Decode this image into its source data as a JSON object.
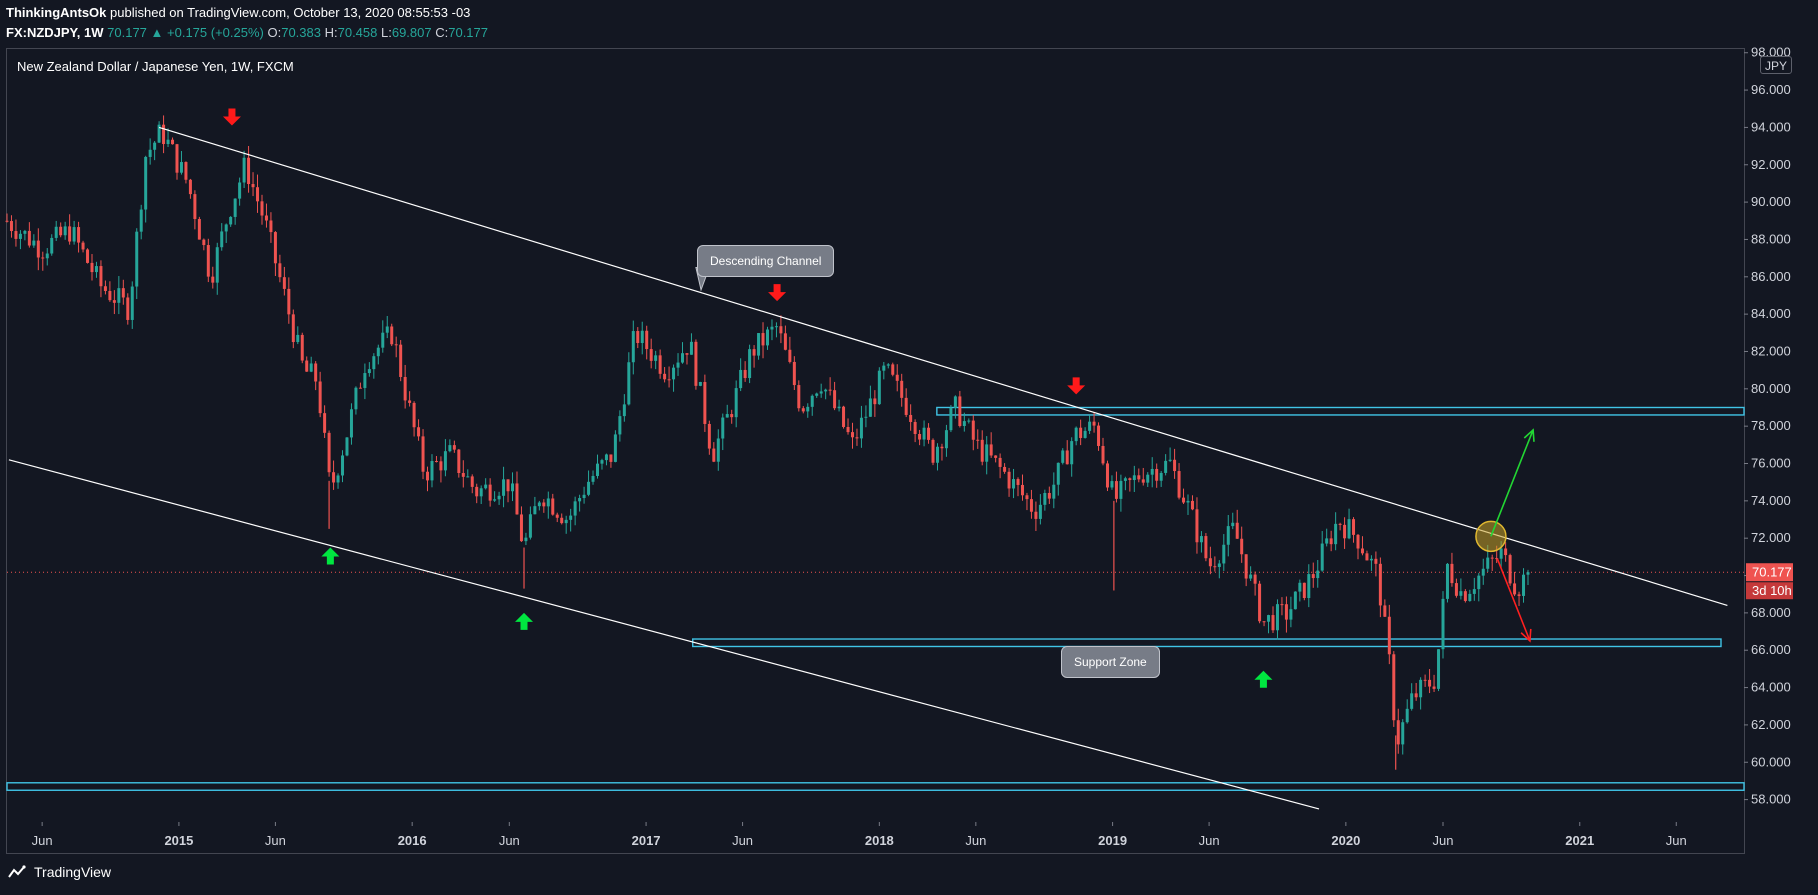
{
  "header": {
    "author": "ThinkingAntsOk",
    "published": "published on TradingView.com, October 13, 2020 08:55:53 -03",
    "symbol": "FX:NZDJPY, 1W",
    "last": "70.177",
    "change": "▲ +0.175 (+0.25%)",
    "open_label": "O:",
    "open": "70.383",
    "high_label": "H:",
    "high": "70.458",
    "low_label": "L:",
    "low": "69.807",
    "close_label": "C:",
    "close": "70.177"
  },
  "chart_data": {
    "type": "candlestick",
    "title": "New Zealand Dollar / Japanese Yen, 1W, FXCM",
    "currency": "JPY",
    "ylim": [
      56.8,
      98.2
    ],
    "y_ticks": [
      "58.000",
      "60.000",
      "62.000",
      "64.000",
      "66.000",
      "68.000",
      "70.000",
      "72.000",
      "74.000",
      "76.000",
      "78.000",
      "80.000",
      "82.000",
      "84.000",
      "86.000",
      "88.000",
      "90.000",
      "92.000",
      "94.000",
      "96.000",
      "98.000"
    ],
    "x_range": [
      "2014-04-07",
      "2021-09-15"
    ],
    "x_ticks": [
      {
        "date": "2014-06-01",
        "label": "Jun"
      },
      {
        "date": "2015-01-01",
        "label": "2015"
      },
      {
        "date": "2015-06-01",
        "label": "Jun"
      },
      {
        "date": "2016-01-01",
        "label": "2016"
      },
      {
        "date": "2016-06-01",
        "label": "Jun"
      },
      {
        "date": "2017-01-01",
        "label": "2017"
      },
      {
        "date": "2017-06-01",
        "label": "Jun"
      },
      {
        "date": "2018-01-01",
        "label": "2018"
      },
      {
        "date": "2018-06-01",
        "label": "Jun"
      },
      {
        "date": "2019-01-01",
        "label": "2019"
      },
      {
        "date": "2019-06-01",
        "label": "Jun"
      },
      {
        "date": "2020-01-01",
        "label": "2020"
      },
      {
        "date": "2020-06-01",
        "label": "Jun"
      },
      {
        "date": "2021-01-01",
        "label": "2021"
      },
      {
        "date": "2021-06-01",
        "label": "Jun"
      }
    ],
    "price_path": [
      [
        "2014-04-07",
        89.0
      ],
      [
        "2014-06-01",
        87.5
      ],
      [
        "2014-07-15",
        88.5
      ],
      [
        "2014-09-01",
        85.5
      ],
      [
        "2014-10-15",
        84.3
      ],
      [
        "2014-11-10",
        92.5
      ],
      [
        "2014-12-05",
        93.8
      ],
      [
        "2015-01-15",
        91.0
      ],
      [
        "2015-02-20",
        86.0
      ],
      [
        "2015-03-20",
        89.5
      ],
      [
        "2015-04-15",
        92.0
      ],
      [
        "2015-05-15",
        89.0
      ],
      [
        "2015-06-15",
        85.0
      ],
      [
        "2015-07-15",
        81.0
      ],
      [
        "2015-08-05",
        80.5
      ],
      [
        "2015-08-26",
        74.5
      ],
      [
        "2015-09-20",
        77.5
      ],
      [
        "2015-10-20",
        81.5
      ],
      [
        "2015-12-01",
        83.0
      ],
      [
        "2015-12-20",
        80.0
      ],
      [
        "2016-01-20",
        75.5
      ],
      [
        "2016-03-01",
        76.5
      ],
      [
        "2016-04-10",
        74.5
      ],
      [
        "2016-06-01",
        75.0
      ],
      [
        "2016-06-24",
        71.5
      ],
      [
        "2016-07-20",
        74.5
      ],
      [
        "2016-09-01",
        73.0
      ],
      [
        "2016-10-01",
        75.0
      ],
      [
        "2016-11-10",
        76.5
      ],
      [
        "2016-12-15",
        83.0
      ],
      [
        "2017-02-01",
        81.0
      ],
      [
        "2017-03-10",
        82.5
      ],
      [
        "2017-04-15",
        76.5
      ],
      [
        "2017-05-15",
        79.0
      ],
      [
        "2017-06-15",
        82.0
      ],
      [
        "2017-07-25",
        83.3
      ],
      [
        "2017-09-01",
        79.0
      ],
      [
        "2017-10-01",
        80.5
      ],
      [
        "2017-11-20",
        77.0
      ],
      [
        "2018-01-10",
        81.0
      ],
      [
        "2018-02-15",
        79.0
      ],
      [
        "2018-03-25",
        76.5
      ],
      [
        "2018-05-01",
        79.0
      ],
      [
        "2018-06-01",
        77.0
      ],
      [
        "2018-07-15",
        75.5
      ],
      [
        "2018-09-01",
        73.5
      ],
      [
        "2018-10-03",
        75.0
      ],
      [
        "2018-11-01",
        77.5
      ],
      [
        "2018-12-05",
        78.0
      ],
      [
        "2019-01-03",
        74.0
      ],
      [
        "2019-02-15",
        75.5
      ],
      [
        "2019-04-01",
        76.0
      ],
      [
        "2019-05-01",
        73.5
      ],
      [
        "2019-06-01",
        70.5
      ],
      [
        "2019-07-10",
        72.5
      ],
      [
        "2019-08-25",
        67.5
      ],
      [
        "2019-10-01",
        68.0
      ],
      [
        "2019-11-10",
        70.0
      ],
      [
        "2019-12-20",
        73.0
      ],
      [
        "2020-01-20",
        72.0
      ],
      [
        "2020-02-20",
        70.0
      ],
      [
        "2020-03-12",
        64.5
      ],
      [
        "2020-03-20",
        61.0
      ],
      [
        "2020-04-15",
        63.5
      ],
      [
        "2020-05-20",
        64.5
      ],
      [
        "2020-06-08",
        70.5
      ],
      [
        "2020-07-01",
        69.0
      ],
      [
        "2020-08-10",
        70.5
      ],
      [
        "2020-09-01",
        71.2
      ],
      [
        "2020-09-25",
        69.3
      ],
      [
        "2020-10-12",
        70.177
      ]
    ],
    "spikes": [
      {
        "date": "2015-08-24",
        "low": 72.5
      },
      {
        "date": "2016-06-24",
        "low": 69.3
      },
      {
        "date": "2019-01-03",
        "low": 69.2
      },
      {
        "date": "2020-03-19",
        "low": 59.6
      }
    ],
    "last_price": 70.177,
    "last_label": "70.177",
    "countdown": "3d 10h",
    "channel_upper": [
      [
        "2014-12-01",
        94.0
      ],
      [
        "2021-08-20",
        68.4
      ]
    ],
    "channel_lower": [
      [
        "2014-04-10",
        76.2
      ],
      [
        "2019-11-20",
        57.5
      ]
    ],
    "zones": [
      {
        "name": "resistance",
        "from": "2018-04-01",
        "to": "2021-09-15",
        "y1": 78.6,
        "y2": 79.0
      },
      {
        "name": "support",
        "from": "2017-03-15",
        "to": "2021-08-10",
        "y1": 66.2,
        "y2": 66.6
      },
      {
        "name": "long-term",
        "from": "2014-04-07",
        "to": "2021-09-15",
        "y1": 58.5,
        "y2": 58.9
      }
    ],
    "highlight_circle": {
      "date": "2020-08-15",
      "y": 72.1
    },
    "arrows_up": [
      [
        "2015-08-26",
        71.5
      ],
      [
        "2016-06-24",
        68.0
      ],
      [
        "2019-08-25",
        64.9
      ]
    ],
    "arrows_down": [
      [
        "2015-03-25",
        94.1
      ],
      [
        "2017-07-25",
        84.7
      ],
      [
        "2018-11-05",
        79.7
      ]
    ],
    "projection_up": {
      "from": [
        "2020-08-15",
        72.1
      ],
      "to": [
        "2020-10-20",
        77.8
      ]
    },
    "projection_down": {
      "from": [
        "2020-08-25",
        70.9
      ],
      "to": [
        "2020-10-15",
        66.5
      ]
    },
    "annotations": [
      "Descending Channel",
      "Support Zone"
    ],
    "colors": {
      "up": "#26a69a",
      "down": "#ef5350",
      "zone": "#40c4e6",
      "line": "#ffffff",
      "arrow_up": "#00e640",
      "arrow_down": "#ff1a1a",
      "circle": "#c9a227",
      "bg": "#131722"
    }
  },
  "footer": {
    "brand": "TradingView"
  }
}
